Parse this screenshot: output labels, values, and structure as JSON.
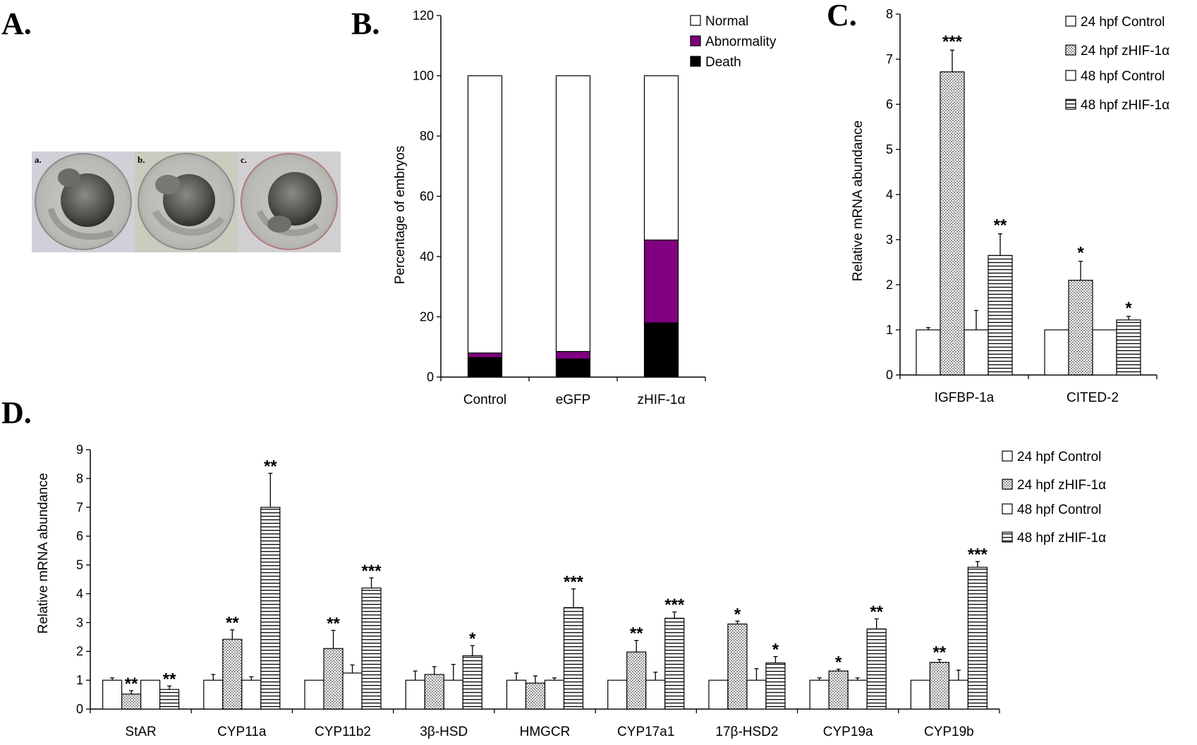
{
  "panels": {
    "a": "A.",
    "b": "B.",
    "c": "C.",
    "d": "D."
  },
  "embryos": [
    {
      "label": "a."
    },
    {
      "label": "b."
    },
    {
      "label": "c."
    }
  ],
  "colors": {
    "normal": "#ffffff",
    "abnormality": "#800080",
    "death": "#000000",
    "dots": "#555555"
  },
  "chart_data": [
    {
      "id": "B",
      "type": "bar",
      "stacked": true,
      "categories": [
        "Control",
        "eGFP",
        "zHIF-1α"
      ],
      "series": [
        {
          "name": "Death",
          "values": [
            6.5,
            6.0,
            18.0
          ]
        },
        {
          "name": "Abnormality",
          "values": [
            1.5,
            2.5,
            27.5
          ]
        },
        {
          "name": "Normal",
          "values": [
            92.0,
            91.5,
            54.5
          ]
        }
      ],
      "legend_order": [
        "Normal",
        "Abnormality",
        "Death"
      ],
      "legend_position": "top-right",
      "ylabel": "Percentage of embryos",
      "ylim": [
        0,
        120
      ],
      "yticks": [
        0,
        20,
        40,
        60,
        80,
        100,
        120
      ]
    },
    {
      "id": "C",
      "type": "bar",
      "categories": [
        "IGFBP-1a",
        "CITED-2"
      ],
      "series": [
        {
          "name": "24 hpf Control",
          "pattern": "plain",
          "values": [
            1.0,
            1.0
          ],
          "errors": [
            0.05,
            0.0
          ],
          "stars": [
            "",
            ""
          ]
        },
        {
          "name": "24 hpf zHIF-1α",
          "pattern": "dots",
          "values": [
            6.72,
            2.1
          ],
          "errors": [
            0.48,
            0.42
          ],
          "stars": [
            "***",
            "*"
          ]
        },
        {
          "name": "48 hpf Control",
          "pattern": "plain",
          "values": [
            1.0,
            1.0
          ],
          "errors": [
            0.43,
            0.0
          ],
          "stars": [
            "",
            ""
          ]
        },
        {
          "name": "48 hpf zHIF-1α",
          "pattern": "hlines",
          "values": [
            2.65,
            1.22
          ],
          "errors": [
            0.48,
            0.08
          ],
          "stars": [
            "**",
            "*"
          ]
        }
      ],
      "legend_position": "top-right",
      "ylabel": "Relative mRNA abundance",
      "ylim": [
        0,
        8
      ],
      "yticks": [
        0,
        1,
        2,
        3,
        4,
        5,
        6,
        7,
        8
      ]
    },
    {
      "id": "D",
      "type": "bar",
      "categories": [
        "StAR",
        "CYP11a",
        "CYP11b2",
        "3β-HSD",
        "HMGCR",
        "CYP17a1",
        "17β-HSD2",
        "CYP19a",
        "CYP19b"
      ],
      "series": [
        {
          "name": "24 hpf Control",
          "pattern": "plain",
          "values": [
            1.0,
            1.0,
            1.0,
            1.0,
            1.0,
            1.0,
            1.0,
            1.0,
            1.0
          ],
          "errors": [
            0.08,
            0.2,
            0.0,
            0.32,
            0.25,
            0.0,
            0.0,
            0.08,
            0.0
          ],
          "stars": [
            "",
            "",
            "",
            "",
            "",
            "",
            "",
            "",
            ""
          ]
        },
        {
          "name": "24 hpf zHIF-1α",
          "pattern": "dots",
          "values": [
            0.52,
            2.42,
            2.1,
            1.2,
            0.9,
            1.98,
            2.95,
            1.32,
            1.62
          ],
          "errors": [
            0.12,
            0.33,
            0.63,
            0.27,
            0.25,
            0.4,
            0.1,
            0.06,
            0.1
          ],
          "stars": [
            "**",
            "**",
            "**",
            "",
            "",
            "**",
            "*",
            "*",
            "**"
          ]
        },
        {
          "name": "48 hpf Control",
          "pattern": "plain",
          "values": [
            1.0,
            1.0,
            1.25,
            1.0,
            1.0,
            1.0,
            1.0,
            1.0,
            1.0
          ],
          "errors": [
            0.0,
            0.12,
            0.28,
            0.55,
            0.08,
            0.28,
            0.4,
            0.08,
            0.35
          ],
          "stars": [
            "",
            "",
            "",
            "",
            "",
            "",
            "",
            "",
            ""
          ]
        },
        {
          "name": "48 hpf zHIF-1α",
          "pattern": "hlines",
          "values": [
            0.68,
            7.0,
            4.2,
            1.85,
            3.52,
            3.15,
            1.6,
            2.78,
            4.92
          ],
          "errors": [
            0.12,
            1.18,
            0.35,
            0.35,
            0.65,
            0.22,
            0.22,
            0.35,
            0.2
          ],
          "stars": [
            "**",
            "**",
            "***",
            "*",
            "***",
            "***",
            "*",
            "**",
            "***"
          ]
        }
      ],
      "legend_position": "right",
      "ylabel": "Relative mRNA abundance",
      "ylim": [
        0,
        9
      ],
      "yticks": [
        0,
        1,
        2,
        3,
        4,
        5,
        6,
        7,
        8,
        9
      ]
    }
  ]
}
